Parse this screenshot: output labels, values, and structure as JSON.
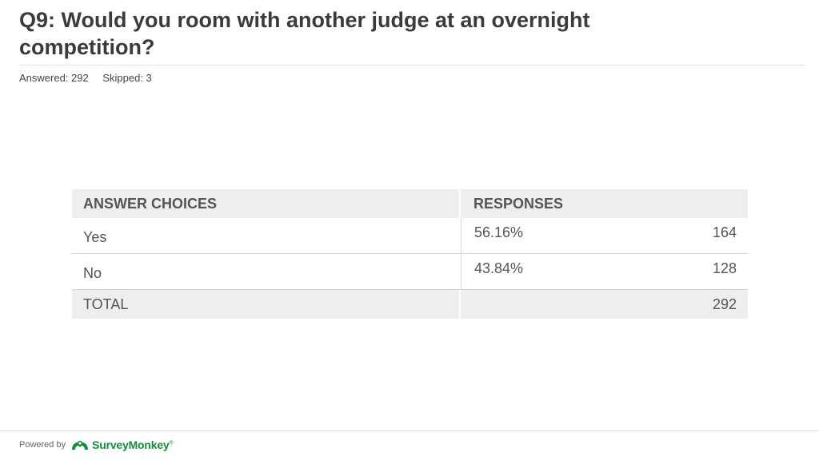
{
  "question": {
    "title": "Q9: Would you room with another judge at an overnight competition?",
    "answered": "Answered: 292",
    "skipped": "Skipped: 3"
  },
  "table": {
    "headers": [
      "ANSWER CHOICES",
      "RESPONSES"
    ],
    "rows": [
      {
        "choice": "Yes",
        "percent": "56.16%",
        "count": "164"
      },
      {
        "choice": "No",
        "percent": "43.84%",
        "count": "128"
      }
    ],
    "total": {
      "label": "TOTAL",
      "count": "292"
    }
  },
  "footer": {
    "powered_by": "Powered by",
    "brand": "SurveyMonkey",
    "brand_mark": "®",
    "brand_color": "#1a8a3c",
    "logo_icon": "surveymonkey-logo-icon"
  }
}
